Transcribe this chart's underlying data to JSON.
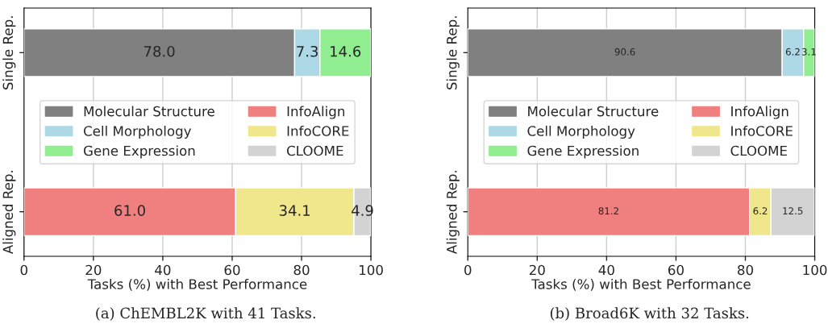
{
  "chart_data": [
    {
      "type": "bar",
      "orientation": "horizontal",
      "stacked": true,
      "categories": [
        "Single Rep.",
        "Aligned Rep."
      ],
      "xlabel": "Tasks (%) with Best Performance",
      "xlim": [
        0,
        100
      ],
      "xticks": [
        0,
        20,
        40,
        60,
        80,
        100
      ],
      "grid": "x",
      "legend": "center",
      "annotations": [
        "(a) ChEMBL2K with 41 Tasks."
      ],
      "series": [
        {
          "name": "Molecular Structure",
          "color": "#808080",
          "values": [
            78.0,
            null
          ],
          "value_labels": [
            "78.0",
            null
          ]
        },
        {
          "name": "Cell Morphology",
          "color": "#add8e6",
          "values": [
            7.3,
            null
          ],
          "value_labels": [
            "7.3",
            null
          ]
        },
        {
          "name": "Gene Expression",
          "color": "#90ee90",
          "values": [
            14.6,
            null
          ],
          "value_labels": [
            "14.6",
            null
          ]
        },
        {
          "name": "InfoAlign",
          "color": "#f08080",
          "values": [
            null,
            61.0
          ],
          "value_labels": [
            null,
            "61.0"
          ]
        },
        {
          "name": "InfoCORE",
          "color": "#f0e68c",
          "values": [
            null,
            34.1
          ],
          "value_labels": [
            null,
            "34.1"
          ]
        },
        {
          "name": "CLOOME",
          "color": "#d3d3d3",
          "values": [
            null,
            4.9
          ],
          "value_labels": [
            null,
            "4.9"
          ]
        }
      ]
    },
    {
      "type": "bar",
      "orientation": "horizontal",
      "stacked": true,
      "categories": [
        "Single Rep.",
        "Aligned Rep."
      ],
      "xlabel": "Tasks (%) with Best Performance",
      "xlim": [
        0,
        100
      ],
      "xticks": [
        0,
        20,
        40,
        60,
        80,
        100
      ],
      "grid": "x",
      "legend": "center",
      "annotations": [
        "(b) Broad6K with 32 Tasks."
      ],
      "series": [
        {
          "name": "Molecular Structure",
          "color": "#808080",
          "values": [
            90.6,
            null
          ],
          "value_labels": [
            "90.6",
            null
          ]
        },
        {
          "name": "Cell Morphology",
          "color": "#add8e6",
          "values": [
            6.2,
            null
          ],
          "value_labels": [
            "6.2",
            null
          ]
        },
        {
          "name": "Gene Expression",
          "color": "#90ee90",
          "values": [
            3.1,
            null
          ],
          "value_labels": [
            "3.1",
            null
          ]
        },
        {
          "name": "InfoAlign",
          "color": "#f08080",
          "values": [
            null,
            81.2
          ],
          "value_labels": [
            null,
            "81.2"
          ]
        },
        {
          "name": "InfoCORE",
          "color": "#f0e68c",
          "values": [
            null,
            6.2
          ],
          "value_labels": [
            null,
            "6.2"
          ]
        },
        {
          "name": "CLOOME",
          "color": "#d3d3d3",
          "values": [
            null,
            12.5
          ],
          "value_labels": [
            null,
            "12.5"
          ]
        }
      ]
    }
  ]
}
